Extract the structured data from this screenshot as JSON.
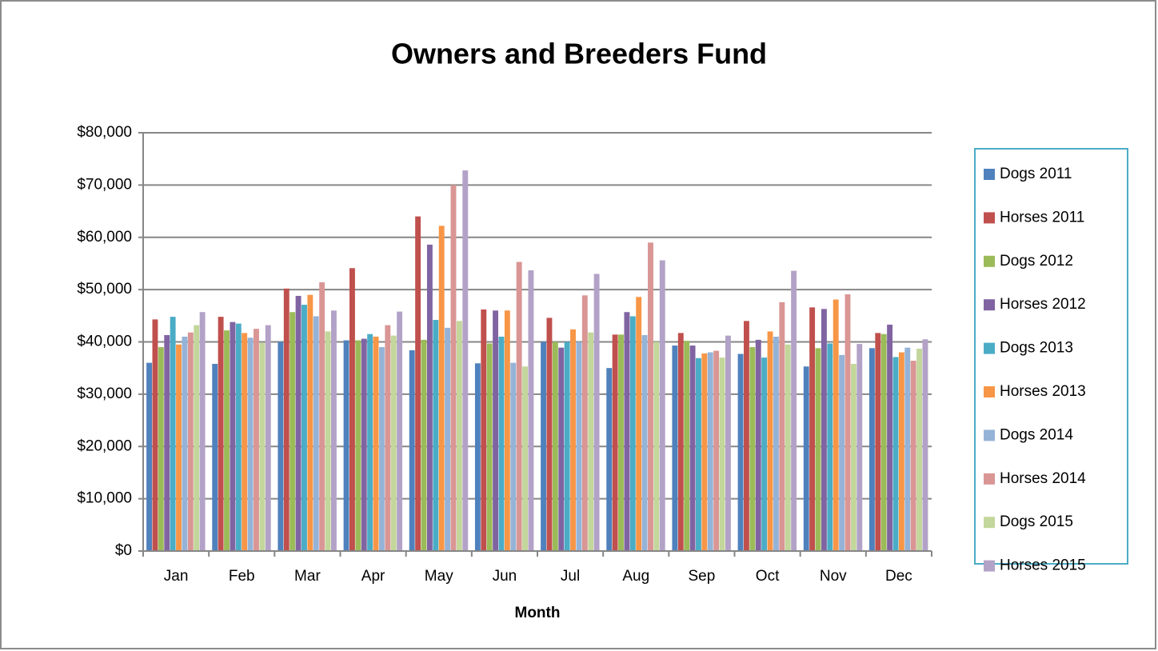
{
  "chart_data": {
    "type": "bar",
    "title": "Owners and Breeders Fund",
    "x_label": "Month",
    "categories": [
      "Jan",
      "Feb",
      "Mar",
      "Apr",
      "May",
      "Jun",
      "Jul",
      "Aug",
      "Sep",
      "Oct",
      "Nov",
      "Dec"
    ],
    "ylim": [
      0,
      80000
    ],
    "yticks": [
      {
        "value": 0,
        "label": "$0"
      },
      {
        "value": 10000,
        "label": "$10,000"
      },
      {
        "value": 20000,
        "label": "$20,000"
      },
      {
        "value": 30000,
        "label": "$30,000"
      },
      {
        "value": 40000,
        "label": "$40,000"
      },
      {
        "value": 50000,
        "label": "$50,000"
      },
      {
        "value": 60000,
        "label": "$60,000"
      },
      {
        "value": 70000,
        "label": "$70,000"
      },
      {
        "value": 80000,
        "label": "$80,000"
      }
    ],
    "grid": true,
    "legend": "right",
    "series": [
      {
        "name": "Dogs 2011",
        "color": "#4f81bd",
        "values": [
          36000,
          35800,
          40000,
          40300,
          38400,
          35900,
          40000,
          35000,
          39300,
          37700,
          35300,
          38800
        ]
      },
      {
        "name": "Horses 2011",
        "color": "#c0504d",
        "values": [
          44300,
          44800,
          50200,
          54100,
          64000,
          46200,
          44600,
          41400,
          41700,
          44000,
          46600,
          41700
        ]
      },
      {
        "name": "Dogs 2012",
        "color": "#9bbb59",
        "values": [
          39000,
          42200,
          45700,
          40300,
          40400,
          39700,
          40000,
          41400,
          40200,
          39000,
          38800,
          41500
        ]
      },
      {
        "name": "Horses 2012",
        "color": "#8064a2",
        "values": [
          41300,
          43800,
          48800,
          40600,
          58600,
          46000,
          38900,
          45700,
          39300,
          40400,
          46300,
          43300
        ]
      },
      {
        "name": "Dogs 2013",
        "color": "#4bacc6",
        "values": [
          44800,
          43500,
          47100,
          41500,
          44200,
          41000,
          40000,
          44900,
          36900,
          37000,
          39700,
          37100
        ]
      },
      {
        "name": "Horses 2013",
        "color": "#f79646",
        "values": [
          39500,
          41700,
          49000,
          41000,
          62200,
          46000,
          42400,
          48600,
          37800,
          42000,
          48100,
          38000
        ]
      },
      {
        "name": "Dogs 2014",
        "color": "#95b3d7",
        "values": [
          41000,
          40800,
          44900,
          39000,
          42700,
          36000,
          40000,
          41300,
          38000,
          41000,
          37500,
          38900
        ]
      },
      {
        "name": "Horses 2014",
        "color": "#d99694",
        "values": [
          41800,
          42500,
          51400,
          43200,
          70000,
          55300,
          48900,
          59000,
          38300,
          47600,
          49100,
          36400
        ]
      },
      {
        "name": "Dogs 2015",
        "color": "#c3d69b",
        "values": [
          43200,
          39800,
          42000,
          41200,
          44000,
          35300,
          41800,
          40000,
          37000,
          39500,
          35800,
          38700
        ]
      },
      {
        "name": "Horses 2015",
        "color": "#b3a2c7",
        "values": [
          45700,
          43200,
          46000,
          45800,
          72800,
          53700,
          53000,
          55600,
          41200,
          53600,
          39600,
          40500
        ]
      }
    ]
  }
}
